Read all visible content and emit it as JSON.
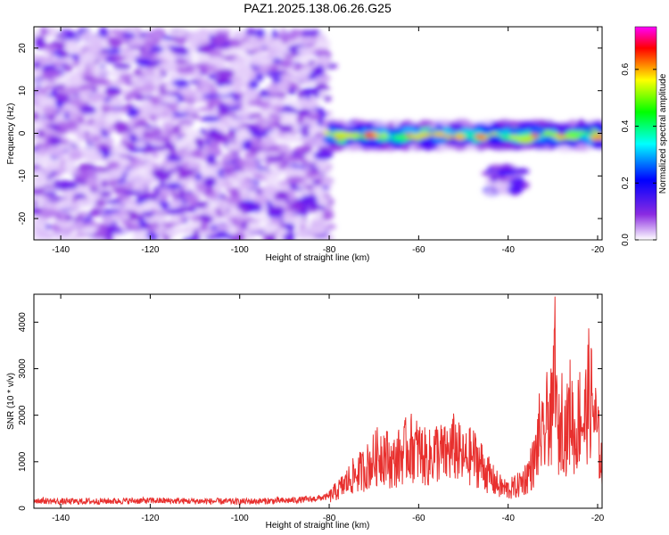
{
  "title": "PAZ1.2025.138.06.26.G25",
  "chart_data": [
    {
      "type": "heatmap",
      "xlabel": "Height of straight line (km)",
      "ylabel": "Frequency (Hz)",
      "xlim": [
        -146,
        -19
      ],
      "ylim": [
        -25,
        25
      ],
      "xticks": [
        -140,
        -120,
        -100,
        -80,
        -60,
        -40,
        -20
      ],
      "yticks": [
        -20,
        -10,
        0,
        10,
        20
      ],
      "xtick_labels": [
        "-140",
        "-120",
        "-100",
        "-80",
        "-60",
        "-40",
        "-20"
      ],
      "ytick_labels": [
        "-20",
        "-10",
        "0",
        "10",
        "20"
      ],
      "regions": [
        {
          "x": [
            -146,
            -80
          ],
          "y": [
            -25,
            24
          ],
          "amplitude": 0.15,
          "pattern": "noise"
        },
        {
          "x": [
            -80,
            -19
          ],
          "y": [
            -3.5,
            2.5
          ],
          "amplitude": 0.45,
          "pattern": "signal band"
        },
        {
          "x": [
            -44,
            -37
          ],
          "y": [
            -14,
            -8
          ],
          "amplitude": 0.2,
          "pattern": "patch"
        }
      ],
      "colorbar": {
        "label": "Normalized spectral amplitude",
        "range": [
          0.0,
          0.75
        ],
        "ticks": [
          0.0,
          0.2,
          0.4,
          0.6
        ],
        "tick_labels": [
          "0.0",
          "0.2",
          "0.4",
          "0.6"
        ],
        "colors": [
          "#ffffff",
          "#8a2be2",
          "#0000ff",
          "#00ffff",
          "#00ff00",
          "#ffff00",
          "#ff0000",
          "#ff00ff"
        ]
      }
    },
    {
      "type": "line",
      "xlabel": "Height of straight line (km)",
      "ylabel": "SNR (10 * v/v)",
      "xlim": [
        -146,
        -19
      ],
      "ylim": [
        0,
        4600
      ],
      "xticks": [
        -140,
        -120,
        -100,
        -80,
        -60,
        -40,
        -20
      ],
      "yticks": [
        0,
        1000,
        2000,
        3000,
        4000
      ],
      "xtick_labels": [
        "-140",
        "-120",
        "-100",
        "-80",
        "-60",
        "-40",
        "-20"
      ],
      "ytick_labels": [
        "0",
        "1000",
        "2000",
        "3000",
        "4000"
      ],
      "color": "#e8302e",
      "series": [
        {
          "x": [
            -146,
            -140,
            -130,
            -120,
            -110,
            -100,
            -90,
            -84,
            -80,
            -77,
            -75,
            -72,
            -70,
            -68,
            -66,
            -64,
            -62,
            -60,
            -58,
            -56,
            -54,
            -52,
            -50,
            -48,
            -46,
            -44,
            -42,
            -40,
            -38,
            -36,
            -34,
            -33,
            -32,
            -31,
            -30,
            -29.5,
            -29,
            -28,
            -27,
            -26,
            -25,
            -24,
            -23,
            -22,
            -21,
            -20,
            -19
          ],
          "y": [
            180,
            150,
            160,
            170,
            160,
            150,
            170,
            200,
            260,
            500,
            700,
            900,
            1100,
            1300,
            1000,
            1200,
            1400,
            1300,
            1100,
            1300,
            1200,
            1400,
            1100,
            1200,
            1000,
            700,
            500,
            420,
            500,
            700,
            1100,
            1700,
            1500,
            2200,
            1900,
            4550,
            1400,
            2100,
            1700,
            2300,
            1500,
            2200,
            1900,
            2600,
            2300,
            1600,
            1000
          ]
        }
      ]
    }
  ]
}
